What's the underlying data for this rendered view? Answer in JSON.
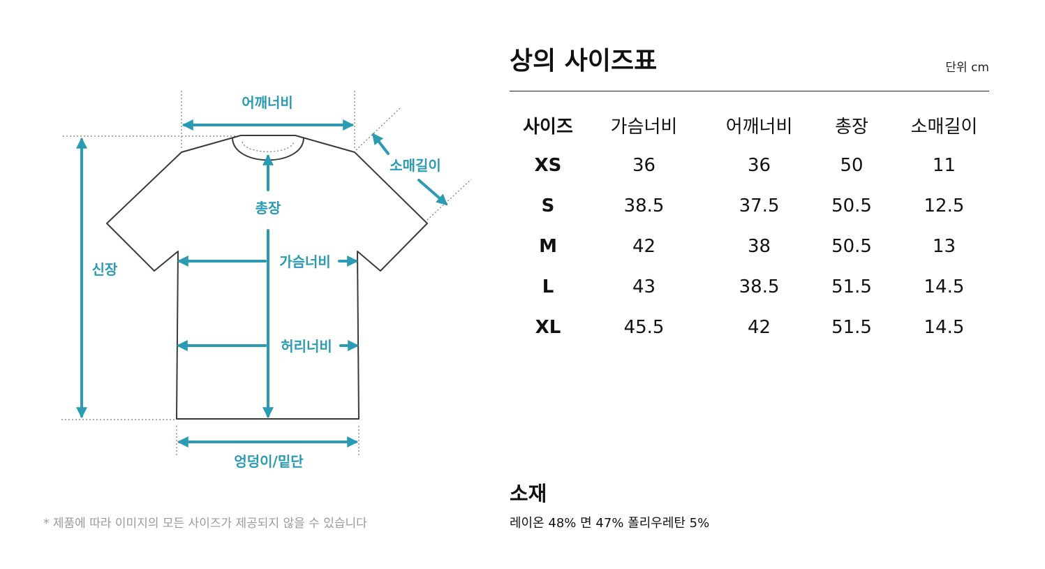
{
  "diagram": {
    "shoulder_label": "어깨너비",
    "sleeve_label": "소매길이",
    "length_label": "총장",
    "height_label": "신장",
    "chest_label": "가슴너비",
    "waist_label": "허리너비",
    "hem_label": "엉덩이/밑단",
    "note": "* 제품에 따라 이미지의 모든 사이즈가 제공되지 않을 수 있습니다",
    "accent_color": "#2a9bb3"
  },
  "size_chart": {
    "title": "상의 사이즈표",
    "unit": "단위 cm",
    "headers": [
      "사이즈",
      "가슴너비",
      "어깨너비",
      "총장",
      "소매길이"
    ],
    "rows": [
      [
        "XS",
        "36",
        "36",
        "50",
        "11"
      ],
      [
        "S",
        "38.5",
        "37.5",
        "50.5",
        "12.5"
      ],
      [
        "M",
        "42",
        "38",
        "50.5",
        "13"
      ],
      [
        "L",
        "43",
        "38.5",
        "51.5",
        "14.5"
      ],
      [
        "XL",
        "45.5",
        "42",
        "51.5",
        "14.5"
      ]
    ]
  },
  "material": {
    "title": "소재",
    "text": "레이온 48% 면 47% 폴리우레탄 5%"
  }
}
